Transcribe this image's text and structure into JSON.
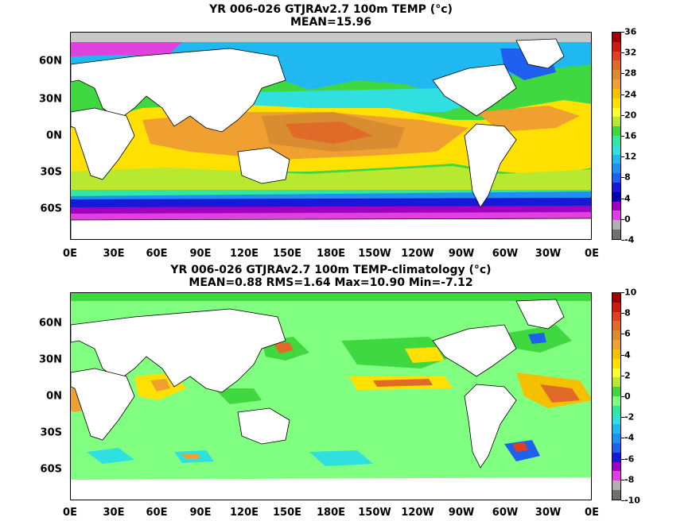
{
  "panels": [
    {
      "title_line1": "YR 006-026 GTJRAv2.7 100m TEMP (°c)",
      "title_line2": "MEAN=15.96",
      "lat_labels": [
        "60N",
        "30N",
        "0N",
        "30S",
        "60S"
      ],
      "lon_labels": [
        "0E",
        "30E",
        "60E",
        "90E",
        "120E",
        "150E",
        "180E",
        "150W",
        "120W",
        "90W",
        "60W",
        "30W",
        "0E"
      ],
      "colorbar_labels": [
        "36",
        "32",
        "28",
        "24",
        "20",
        "16",
        "12",
        "8",
        "4",
        "0",
        "-4"
      ],
      "colorbar_colors": [
        "#a00000",
        "#cc1a10",
        "#e04020",
        "#e06a28",
        "#d98c30",
        "#f0a030",
        "#f5c000",
        "#ffe000",
        "#ffff30",
        "#b8e830",
        "#40d840",
        "#30e8a0",
        "#30e0e0",
        "#20b8f0",
        "#2090f0",
        "#2060f0",
        "#1818d8",
        "#0000b0",
        "#a000c0",
        "#e040e0",
        "#b0b0b0",
        "#707070"
      ]
    },
    {
      "title_line1": "YR 006-026 GTJRAv2.7 100m TEMP-climatology (°c)",
      "title_line2": "MEAN=0.88  RMS=1.64  Max=10.90  Min=-7.12",
      "lat_labels": [
        "60N",
        "30N",
        "0N",
        "30S",
        "60S"
      ],
      "lon_labels": [
        "0E",
        "30E",
        "60E",
        "90E",
        "120E",
        "150E",
        "180E",
        "150W",
        "120W",
        "90W",
        "60W",
        "30W",
        "0E"
      ],
      "colorbar_labels": [
        "10",
        "8",
        "6",
        "4",
        "2",
        "0",
        "-2",
        "-4",
        "-6",
        "-8",
        "-10"
      ],
      "colorbar_colors": [
        "#a00000",
        "#cc1a10",
        "#e04020",
        "#e06a28",
        "#d98c30",
        "#f0a030",
        "#f5c000",
        "#ffe000",
        "#ffff30",
        "#b8e830",
        "#40d840",
        "#80ff80",
        "#30e8a0",
        "#30e0e0",
        "#20b8f0",
        "#2090f0",
        "#2060f0",
        "#1818d8",
        "#a000c0",
        "#e040e0",
        "#b0b0b0",
        "#707070"
      ]
    }
  ]
}
